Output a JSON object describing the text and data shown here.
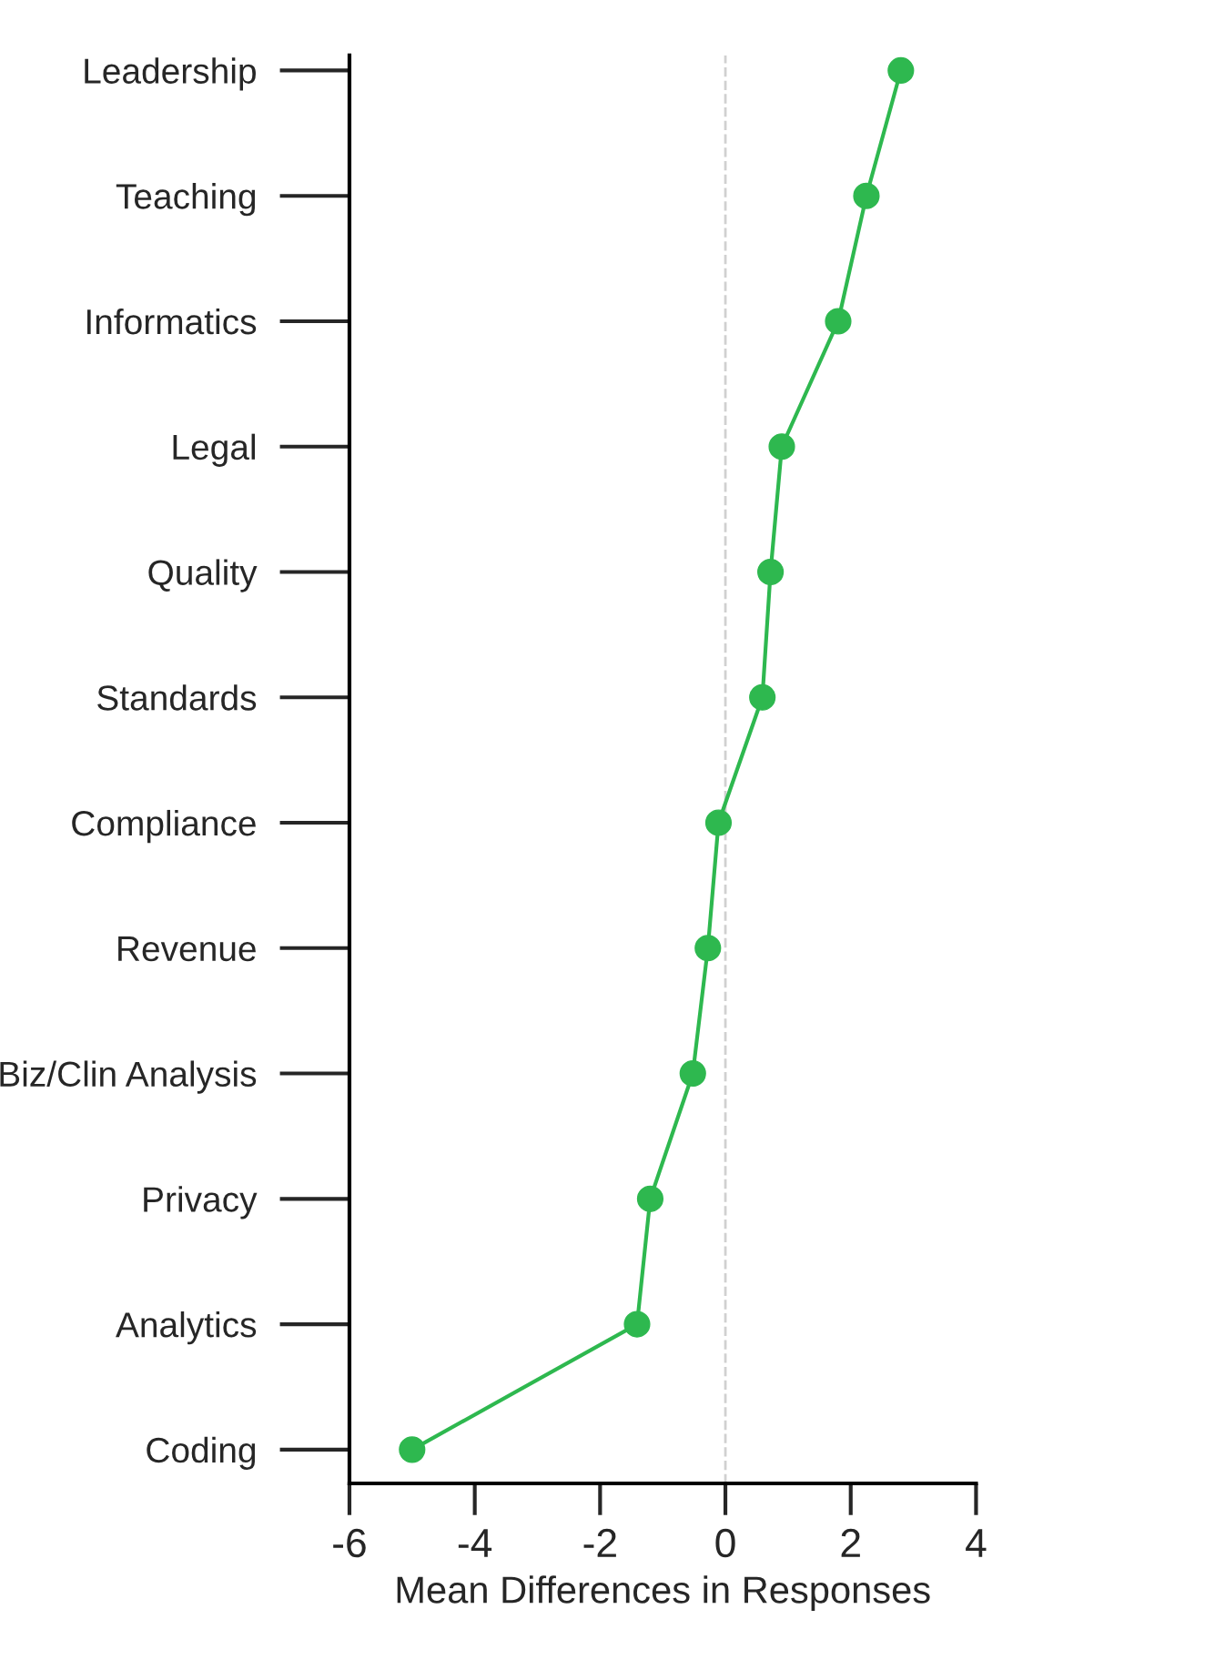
{
  "chart_data": {
    "type": "line",
    "orientation": "horizontal",
    "xlabel": "Mean Differences in Responses",
    "categories": [
      "Leadership",
      "Teaching",
      "Informatics",
      "Legal",
      "Quality",
      "Standards",
      "Compliance",
      "Revenue",
      "Biz/Clin Analysis",
      "Privacy",
      "Analytics",
      "Coding"
    ],
    "series": [
      {
        "color": "#2eb84f",
        "values": [
          2.8,
          2.25,
          1.8,
          0.9,
          0.72,
          0.59,
          -0.11,
          -0.28,
          -0.52,
          -1.2,
          -1.41,
          -5.0
        ]
      }
    ],
    "xlim": [
      -6,
      4
    ],
    "xticks": [
      -6,
      -4,
      -2,
      0,
      2,
      4
    ],
    "marker": "circle",
    "line_style": "solid",
    "grid": false,
    "legend": false,
    "ref_lines": [
      {
        "axis": "x",
        "value": 0,
        "color": "#d0d0d0",
        "line_style": "dashed"
      }
    ]
  }
}
